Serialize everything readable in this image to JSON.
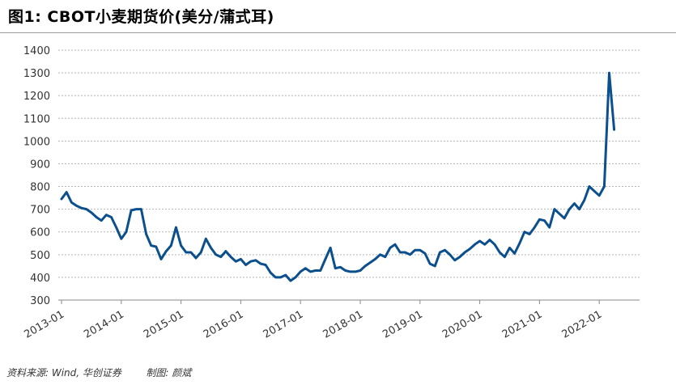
{
  "header": {
    "title": "图1: CBOT小麦期货价(美分/蒲式耳)",
    "source": "资料来源: Wind, 华创证券        制图: 颜斌"
  },
  "colors": {
    "line": "#0b4f8c",
    "grid": "#b5b5b5",
    "axis": "#333333"
  },
  "chart_data": {
    "type": "line",
    "title": "图1: CBOT小麦期货价(美分/蒲式耳)",
    "xlabel": "",
    "ylabel": "",
    "ylim": [
      300,
      1400
    ],
    "yticks": [
      1400,
      1300,
      1200,
      1100,
      1000,
      900,
      800,
      700,
      600,
      500,
      400,
      300
    ],
    "xticks": [
      "2013-01",
      "2014-01",
      "2015-01",
      "2016-01",
      "2017-01",
      "2018-01",
      "2019-01",
      "2020-01",
      "2021-01",
      "2022-01"
    ],
    "grid": "horizontal dashed",
    "series": [
      {
        "values": [
          [
            "2013-01",
            745
          ],
          [
            "2013-02",
            775
          ],
          [
            "2013-03",
            730
          ],
          [
            "2013-04",
            715
          ],
          [
            "2013-05",
            705
          ],
          [
            "2013-06",
            700
          ],
          [
            "2013-07",
            685
          ],
          [
            "2013-08",
            665
          ],
          [
            "2013-09",
            650
          ],
          [
            "2013-10",
            675
          ],
          [
            "2013-11",
            665
          ],
          [
            "2013-12",
            620
          ],
          [
            "2014-01",
            570
          ],
          [
            "2014-02",
            600
          ],
          [
            "2014-03",
            695
          ],
          [
            "2014-04",
            700
          ],
          [
            "2014-05",
            700
          ],
          [
            "2014-06",
            590
          ],
          [
            "2014-07",
            540
          ],
          [
            "2014-08",
            535
          ],
          [
            "2014-09",
            480
          ],
          [
            "2014-10",
            515
          ],
          [
            "2014-11",
            540
          ],
          [
            "2014-12",
            620
          ],
          [
            "2015-01",
            540
          ],
          [
            "2015-02",
            510
          ],
          [
            "2015-03",
            510
          ],
          [
            "2015-04",
            485
          ],
          [
            "2015-05",
            510
          ],
          [
            "2015-06",
            570
          ],
          [
            "2015-07",
            530
          ],
          [
            "2015-08",
            500
          ],
          [
            "2015-09",
            490
          ],
          [
            "2015-10",
            515
          ],
          [
            "2015-11",
            490
          ],
          [
            "2015-12",
            470
          ],
          [
            "2016-01",
            480
          ],
          [
            "2016-02",
            455
          ],
          [
            "2016-03",
            470
          ],
          [
            "2016-04",
            475
          ],
          [
            "2016-05",
            460
          ],
          [
            "2016-06",
            455
          ],
          [
            "2016-07",
            420
          ],
          [
            "2016-08",
            400
          ],
          [
            "2016-09",
            400
          ],
          [
            "2016-10",
            410
          ],
          [
            "2016-11",
            385
          ],
          [
            "2016-12",
            400
          ],
          [
            "2017-01",
            425
          ],
          [
            "2017-02",
            440
          ],
          [
            "2017-03",
            425
          ],
          [
            "2017-04",
            430
          ],
          [
            "2017-05",
            430
          ],
          [
            "2017-06",
            480
          ],
          [
            "2017-07",
            530
          ],
          [
            "2017-08",
            440
          ],
          [
            "2017-09",
            445
          ],
          [
            "2017-10",
            430
          ],
          [
            "2017-11",
            425
          ],
          [
            "2017-12",
            425
          ],
          [
            "2018-01",
            430
          ],
          [
            "2018-02",
            450
          ],
          [
            "2018-03",
            465
          ],
          [
            "2018-04",
            480
          ],
          [
            "2018-05",
            500
          ],
          [
            "2018-06",
            490
          ],
          [
            "2018-07",
            530
          ],
          [
            "2018-08",
            545
          ],
          [
            "2018-09",
            510
          ],
          [
            "2018-10",
            510
          ],
          [
            "2018-11",
            500
          ],
          [
            "2018-12",
            520
          ],
          [
            "2019-01",
            520
          ],
          [
            "2019-02",
            505
          ],
          [
            "2019-03",
            460
          ],
          [
            "2019-04",
            450
          ],
          [
            "2019-05",
            510
          ],
          [
            "2019-06",
            520
          ],
          [
            "2019-07",
            500
          ],
          [
            "2019-08",
            475
          ],
          [
            "2019-09",
            490
          ],
          [
            "2019-10",
            510
          ],
          [
            "2019-11",
            525
          ],
          [
            "2019-12",
            545
          ],
          [
            "2020-01",
            560
          ],
          [
            "2020-02",
            545
          ],
          [
            "2020-03",
            565
          ],
          [
            "2020-04",
            545
          ],
          [
            "2020-05",
            510
          ],
          [
            "2020-06",
            490
          ],
          [
            "2020-07",
            530
          ],
          [
            "2020-08",
            505
          ],
          [
            "2020-09",
            550
          ],
          [
            "2020-10",
            600
          ],
          [
            "2020-11",
            590
          ],
          [
            "2020-12",
            620
          ],
          [
            "2021-01",
            655
          ],
          [
            "2021-02",
            650
          ],
          [
            "2021-03",
            620
          ],
          [
            "2021-04",
            700
          ],
          [
            "2021-05",
            680
          ],
          [
            "2021-06",
            660
          ],
          [
            "2021-07",
            700
          ],
          [
            "2021-08",
            725
          ],
          [
            "2021-09",
            700
          ],
          [
            "2021-10",
            740
          ],
          [
            "2021-11",
            800
          ],
          [
            "2021-12",
            780
          ],
          [
            "2022-01",
            760
          ],
          [
            "2022-02",
            800
          ],
          [
            "2022-03",
            1300
          ],
          [
            "2022-04",
            1050
          ]
        ]
      }
    ]
  }
}
